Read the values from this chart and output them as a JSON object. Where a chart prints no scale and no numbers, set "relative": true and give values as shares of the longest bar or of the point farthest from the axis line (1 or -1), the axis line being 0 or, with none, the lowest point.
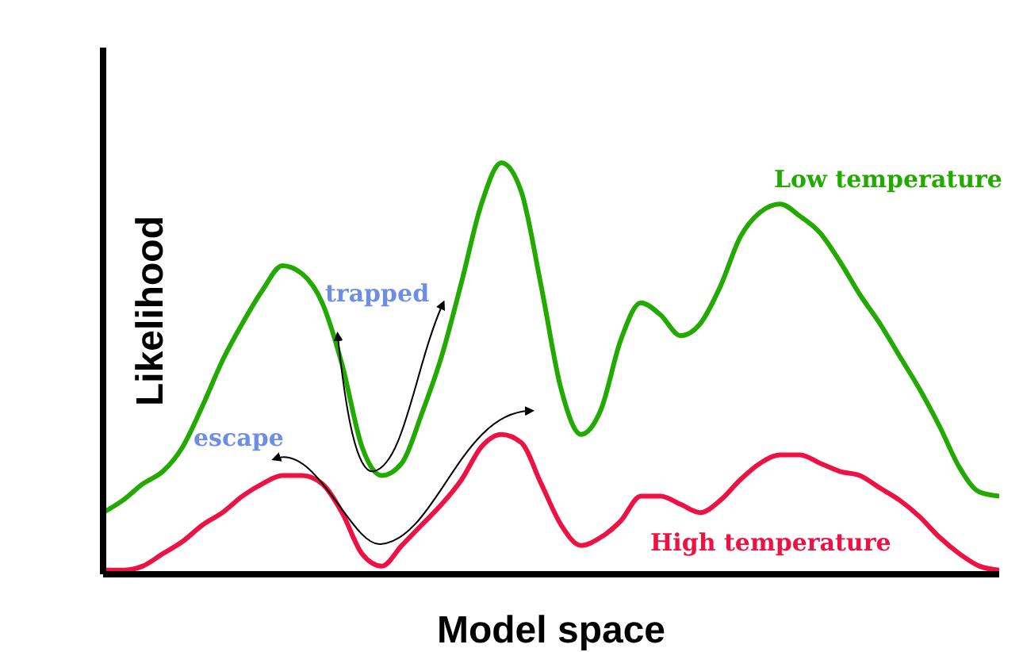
{
  "chart_data": {
    "type": "line",
    "relative": true,
    "xlabel": "Model space",
    "ylabel": "Likelihood",
    "legend": false,
    "grid": false,
    "marker": "none",
    "line_style": "solid",
    "categories": [
      null,
      null,
      null,
      null,
      null,
      null,
      null,
      null,
      null,
      null,
      null,
      null,
      null,
      null,
      null,
      null,
      null,
      null,
      null,
      null,
      null,
      null,
      null,
      null,
      null,
      null,
      null,
      null,
      null,
      null,
      null,
      null,
      null,
      null,
      null,
      null,
      null,
      null,
      null,
      null,
      null,
      null,
      null,
      null,
      null,
      null
    ],
    "series": [
      {
        "name": "Low temperature",
        "color": "#22aa00",
        "values": [
          0.15,
          0.18,
          0.22,
          0.25,
          0.31,
          0.41,
          0.52,
          0.61,
          0.69,
          0.75,
          0.73,
          0.66,
          0.51,
          0.31,
          0.24,
          0.27,
          0.39,
          0.53,
          0.71,
          0.9,
          1,
          0.93,
          0.7,
          0.45,
          0.34,
          0.4,
          0.57,
          0.66,
          0.63,
          0.58,
          0.61,
          0.7,
          0.82,
          0.88,
          0.9,
          0.87,
          0.83,
          0.76,
          0.68,
          0.61,
          0.53,
          0.45,
          0.36,
          0.26,
          0.2,
          0.19
        ]
      },
      {
        "name": "High temperature",
        "color": "#ee1144",
        "values": [
          0.01,
          0.01,
          0.02,
          0.05,
          0.08,
          0.12,
          0.15,
          0.19,
          0.22,
          0.24,
          0.24,
          0.22,
          0.15,
          0.05,
          0.02,
          0.07,
          0.12,
          0.17,
          0.23,
          0.31,
          0.34,
          0.32,
          0.22,
          0.12,
          0.07,
          0.09,
          0.13,
          0.19,
          0.19,
          0.17,
          0.15,
          0.18,
          0.23,
          0.27,
          0.29,
          0.29,
          0.27,
          0.25,
          0.24,
          0.21,
          0.18,
          0.14,
          0.09,
          0.05,
          0.02,
          0.01
        ]
      }
    ],
    "annotations": [
      "trapped",
      "escape"
    ]
  }
}
